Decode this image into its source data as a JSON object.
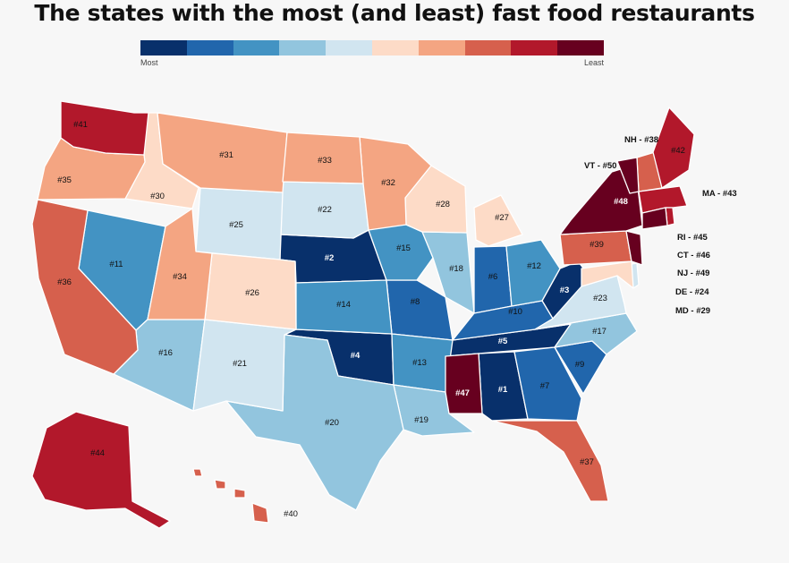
{
  "title": "The states with the most (and least) fast food restaurants",
  "legend": {
    "low_label": "Most",
    "high_label": "Least",
    "colors": [
      "#08306b",
      "#2166ac",
      "#4393c3",
      "#92c5de",
      "#d1e5f0",
      "#fddbc7",
      "#f4a582",
      "#d6604d",
      "#b2182b",
      "#67001f"
    ]
  },
  "states": [
    {
      "state": "Alabama",
      "rank": "#1"
    },
    {
      "state": "West Virginia",
      "rank": "#3"
    },
    {
      "state": "Nebraska",
      "rank": "#2"
    },
    {
      "state": "Oklahoma",
      "rank": "#4"
    },
    {
      "state": "Tennessee",
      "rank": "#5"
    },
    {
      "state": "Indiana",
      "rank": "#6"
    },
    {
      "state": "Georgia",
      "rank": "#7"
    },
    {
      "state": "Missouri",
      "rank": "#8"
    },
    {
      "state": "South Carolina",
      "rank": "#9"
    },
    {
      "state": "Kentucky",
      "rank": "#10"
    },
    {
      "state": "Nevada",
      "rank": "#11"
    },
    {
      "state": "Ohio",
      "rank": "#12"
    },
    {
      "state": "Arkansas",
      "rank": "#13"
    },
    {
      "state": "Kansas",
      "rank": "#14"
    },
    {
      "state": "Iowa",
      "rank": "#15"
    },
    {
      "state": "Arizona",
      "rank": "#16"
    },
    {
      "state": "North Carolina",
      "rank": "#17"
    },
    {
      "state": "Illinois",
      "rank": "#18"
    },
    {
      "state": "Louisiana",
      "rank": "#19"
    },
    {
      "state": "Texas",
      "rank": "#20"
    },
    {
      "state": "New Mexico",
      "rank": "#21"
    },
    {
      "state": "South Dakota",
      "rank": "#22"
    },
    {
      "state": "Virginia",
      "rank": "#23"
    },
    {
      "state": "Delaware",
      "rank": "#24"
    },
    {
      "state": "Wyoming",
      "rank": "#25"
    },
    {
      "state": "Colorado",
      "rank": "#26"
    },
    {
      "state": "Michigan",
      "rank": "#27"
    },
    {
      "state": "Wisconsin",
      "rank": "#28"
    },
    {
      "state": "Maryland",
      "rank": "#29"
    },
    {
      "state": "Idaho",
      "rank": "#30"
    },
    {
      "state": "Montana",
      "rank": "#31"
    },
    {
      "state": "Minnesota",
      "rank": "#32"
    },
    {
      "state": "North Dakota",
      "rank": "#33"
    },
    {
      "state": "Utah",
      "rank": "#34"
    },
    {
      "state": "Oregon",
      "rank": "#35"
    },
    {
      "state": "California",
      "rank": "#36"
    },
    {
      "state": "Florida",
      "rank": "#37"
    },
    {
      "state": "New Hampshire",
      "rank": "#38"
    },
    {
      "state": "Pennsylvania",
      "rank": "#39"
    },
    {
      "state": "Hawaii",
      "rank": "#40"
    },
    {
      "state": "Washington",
      "rank": "#41"
    },
    {
      "state": "Maine",
      "rank": "#42"
    },
    {
      "state": "Massachusetts",
      "rank": "#43"
    },
    {
      "state": "Alaska",
      "rank": "#44"
    },
    {
      "state": "Rhode Island",
      "rank": "#45"
    },
    {
      "state": "Connecticut",
      "rank": "#46"
    },
    {
      "state": "Mississippi",
      "rank": "#47"
    },
    {
      "state": "New York",
      "rank": "#48"
    },
    {
      "state": "New Jersey",
      "rank": "#49"
    },
    {
      "state": "Vermont",
      "rank": "#50"
    }
  ],
  "side_labels": {
    "nh": "NH - #38",
    "vt": "VT - #50",
    "ma": "MA - #43",
    "ri": "RI - #45",
    "ct": "CT - #46",
    "nj": "NJ - #49",
    "de": "DE - #24",
    "md": "MD - #29"
  }
}
